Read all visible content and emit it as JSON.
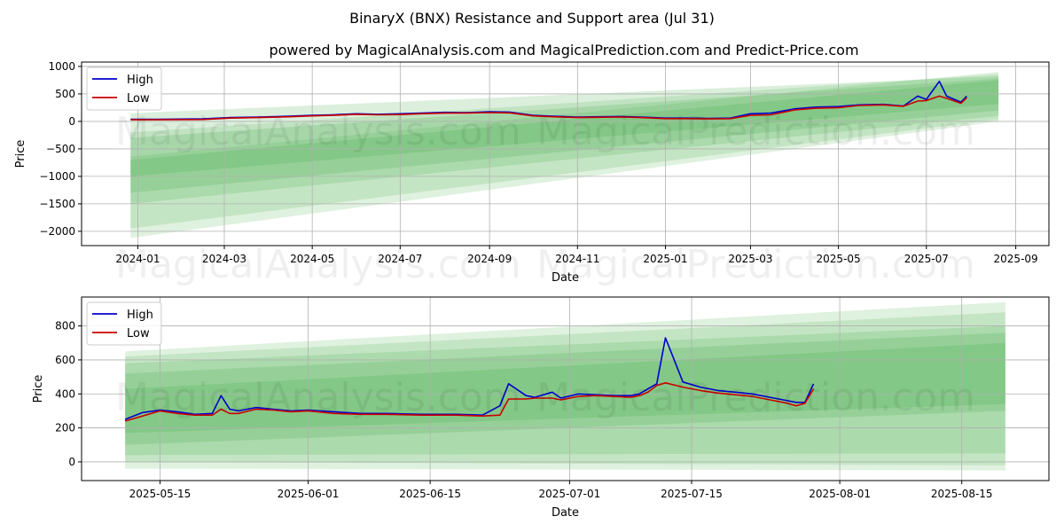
{
  "title": "BinaryX (BNX) Resistance and Support area (Jul 31)",
  "subtitle": "powered by MagicalAnalysis.com and MagicalPrediction.com and Predict-Price.com",
  "watermarks": [
    "MagicalAnalysis.com",
    "MagicalPrediction.com"
  ],
  "colors": {
    "high": "#0000cc",
    "low": "#cc0000",
    "band": "#4caf50"
  },
  "chart_data": [
    {
      "type": "line",
      "xlabel": "Date",
      "ylabel": "Price",
      "xlim": [
        "2023-11-23",
        "2025-09-24"
      ],
      "ylim": [
        -2260,
        1080
      ],
      "grid": true,
      "legend": "top-left",
      "x_ticks": [
        "2024-01",
        "2024-03",
        "2024-05",
        "2024-07",
        "2024-09",
        "2024-11",
        "2025-01",
        "2025-03",
        "2025-05",
        "2025-07",
        "2025-09"
      ],
      "y_ticks": [
        1000,
        500,
        0,
        -500,
        -1000,
        -1500,
        -2000
      ],
      "y_tick_labels": [
        "1000",
        "500",
        "0",
        "−500",
        "−1000",
        "−1500",
        "−2000"
      ],
      "bands": [
        {
          "x": [
            "2023-12-27",
            "2025-08-20"
          ],
          "top": [
            -640,
            900
          ],
          "bottom": [
            -2120,
            0
          ],
          "opacity": 0.18
        },
        {
          "x": [
            "2023-12-27",
            "2025-08-20"
          ],
          "top": [
            -200,
            860
          ],
          "bottom": [
            -1950,
            40
          ],
          "opacity": 0.18
        },
        {
          "x": [
            "2023-12-27",
            "2025-08-20"
          ],
          "top": [
            150,
            820
          ],
          "bottom": [
            -1500,
            100
          ],
          "opacity": 0.2
        },
        {
          "x": [
            "2023-12-27",
            "2025-08-20"
          ],
          "top": [
            -300,
            780
          ],
          "bottom": [
            -1300,
            200
          ],
          "opacity": 0.22
        },
        {
          "x": [
            "2023-12-27",
            "2025-08-20"
          ],
          "top": [
            -700,
            750
          ],
          "bottom": [
            -1000,
            320
          ],
          "opacity": 0.25
        }
      ],
      "series": [
        {
          "name": "High",
          "color": "#0000cc",
          "x": [
            "2023-12-27",
            "2024-01-15",
            "2024-02-15",
            "2024-03-05",
            "2024-03-25",
            "2024-04-15",
            "2024-05-01",
            "2024-05-15",
            "2024-06-01",
            "2024-06-15",
            "2024-07-01",
            "2024-07-15",
            "2024-08-01",
            "2024-08-15",
            "2024-09-01",
            "2024-09-15",
            "2024-10-01",
            "2024-10-15",
            "2024-11-01",
            "2024-11-15",
            "2024-12-01",
            "2024-12-15",
            "2025-01-01",
            "2025-01-15",
            "2025-02-01",
            "2025-02-15",
            "2025-03-01",
            "2025-03-15",
            "2025-04-01",
            "2025-04-15",
            "2025-05-01",
            "2025-05-15",
            "2025-06-01",
            "2025-06-15",
            "2025-06-25",
            "2025-07-01",
            "2025-07-10",
            "2025-07-15",
            "2025-07-25",
            "2025-07-29"
          ],
          "values": [
            40,
            40,
            45,
            70,
            80,
            95,
            110,
            120,
            140,
            130,
            140,
            150,
            165,
            160,
            175,
            170,
            110,
            95,
            80,
            85,
            90,
            80,
            60,
            60,
            55,
            60,
            140,
            150,
            230,
            260,
            270,
            300,
            310,
            280,
            460,
            400,
            730,
            460,
            350,
            460
          ]
        },
        {
          "name": "Low",
          "color": "#cc0000",
          "x": [
            "2023-12-27",
            "2024-01-15",
            "2024-02-15",
            "2024-03-05",
            "2024-03-25",
            "2024-04-15",
            "2024-05-01",
            "2024-05-15",
            "2024-06-01",
            "2024-06-15",
            "2024-07-01",
            "2024-07-15",
            "2024-08-01",
            "2024-08-15",
            "2024-09-01",
            "2024-09-15",
            "2024-10-01",
            "2024-10-15",
            "2024-11-01",
            "2024-11-15",
            "2024-12-01",
            "2024-12-15",
            "2025-01-01",
            "2025-01-15",
            "2025-02-01",
            "2025-02-15",
            "2025-03-01",
            "2025-03-15",
            "2025-04-01",
            "2025-04-15",
            "2025-05-01",
            "2025-05-15",
            "2025-06-01",
            "2025-06-15",
            "2025-06-25",
            "2025-07-01",
            "2025-07-10",
            "2025-07-15",
            "2025-07-25",
            "2025-07-29"
          ],
          "values": [
            30,
            30,
            35,
            60,
            70,
            85,
            100,
            110,
            130,
            120,
            125,
            140,
            150,
            150,
            160,
            155,
            100,
            85,
            70,
            75,
            80,
            70,
            50,
            50,
            45,
            50,
            110,
            120,
            210,
            240,
            250,
            290,
            300,
            275,
            370,
            380,
            460,
            420,
            330,
            430
          ]
        }
      ]
    },
    {
      "type": "line",
      "xlabel": "Date",
      "ylabel": "Price",
      "xlim": [
        "2025-05-06",
        "2025-08-25"
      ],
      "ylim": [
        -110,
        970
      ],
      "grid": true,
      "legend": "top-left",
      "x_ticks": [
        "2025-05-15",
        "2025-06-01",
        "2025-06-15",
        "2025-07-01",
        "2025-07-15",
        "2025-08-01",
        "2025-08-15"
      ],
      "y_ticks": [
        800,
        600,
        400,
        200,
        0
      ],
      "y_tick_labels": [
        "800",
        "600",
        "400",
        "200",
        "0"
      ],
      "bands": [
        {
          "x": [
            "2025-05-11",
            "2025-08-20"
          ],
          "top": [
            650,
            940
          ],
          "bottom": [
            -40,
            -50
          ],
          "opacity": 0.18
        },
        {
          "x": [
            "2025-05-11",
            "2025-08-20"
          ],
          "top": [
            620,
            880
          ],
          "bottom": [
            0,
            -20
          ],
          "opacity": 0.18
        },
        {
          "x": [
            "2025-05-11",
            "2025-08-20"
          ],
          "top": [
            580,
            800
          ],
          "bottom": [
            40,
            50
          ],
          "opacity": 0.2
        },
        {
          "x": [
            "2025-05-11",
            "2025-08-20"
          ],
          "top": [
            520,
            760
          ],
          "bottom": [
            100,
            300
          ],
          "opacity": 0.22
        },
        {
          "x": [
            "2025-05-11",
            "2025-08-20"
          ],
          "top": [
            430,
            700
          ],
          "bottom": [
            170,
            340
          ],
          "opacity": 0.25
        }
      ],
      "series": [
        {
          "name": "High",
          "color": "#0000cc",
          "x": [
            "2025-05-11",
            "2025-05-13",
            "2025-05-15",
            "2025-05-17",
            "2025-05-19",
            "2025-05-21",
            "2025-05-22",
            "2025-05-23",
            "2025-05-24",
            "2025-05-26",
            "2025-05-28",
            "2025-05-30",
            "2025-06-01",
            "2025-06-04",
            "2025-06-07",
            "2025-06-10",
            "2025-06-14",
            "2025-06-18",
            "2025-06-21",
            "2025-06-23",
            "2025-06-24",
            "2025-06-26",
            "2025-06-27",
            "2025-06-29",
            "2025-06-30",
            "2025-07-02",
            "2025-07-04",
            "2025-07-06",
            "2025-07-08",
            "2025-07-09",
            "2025-07-10",
            "2025-07-11",
            "2025-07-12",
            "2025-07-14",
            "2025-07-16",
            "2025-07-18",
            "2025-07-20",
            "2025-07-22",
            "2025-07-24",
            "2025-07-26",
            "2025-07-27",
            "2025-07-28",
            "2025-07-29"
          ],
          "values": [
            250,
            290,
            305,
            295,
            280,
            285,
            390,
            310,
            300,
            320,
            310,
            300,
            305,
            295,
            285,
            285,
            280,
            280,
            275,
            330,
            460,
            390,
            380,
            410,
            375,
            400,
            395,
            390,
            390,
            400,
            430,
            460,
            730,
            470,
            440,
            420,
            410,
            400,
            380,
            360,
            350,
            350,
            460
          ]
        },
        {
          "name": "Low",
          "color": "#cc0000",
          "x": [
            "2025-05-11",
            "2025-05-13",
            "2025-05-15",
            "2025-05-17",
            "2025-05-19",
            "2025-05-21",
            "2025-05-22",
            "2025-05-23",
            "2025-05-24",
            "2025-05-26",
            "2025-05-28",
            "2025-05-30",
            "2025-06-01",
            "2025-06-04",
            "2025-06-07",
            "2025-06-10",
            "2025-06-14",
            "2025-06-18",
            "2025-06-21",
            "2025-06-23",
            "2025-06-24",
            "2025-06-26",
            "2025-06-27",
            "2025-06-29",
            "2025-06-30",
            "2025-07-02",
            "2025-07-04",
            "2025-07-06",
            "2025-07-08",
            "2025-07-09",
            "2025-07-10",
            "2025-07-11",
            "2025-07-12",
            "2025-07-14",
            "2025-07-16",
            "2025-07-18",
            "2025-07-20",
            "2025-07-22",
            "2025-07-24",
            "2025-07-26",
            "2025-07-27",
            "2025-07-28",
            "2025-07-29"
          ],
          "values": [
            240,
            270,
            300,
            285,
            275,
            275,
            310,
            285,
            285,
            310,
            305,
            295,
            300,
            285,
            280,
            280,
            275,
            275,
            270,
            275,
            370,
            370,
            375,
            375,
            365,
            385,
            390,
            385,
            380,
            390,
            410,
            450,
            465,
            440,
            420,
            405,
            395,
            385,
            365,
            345,
            330,
            345,
            430
          ]
        }
      ]
    }
  ]
}
